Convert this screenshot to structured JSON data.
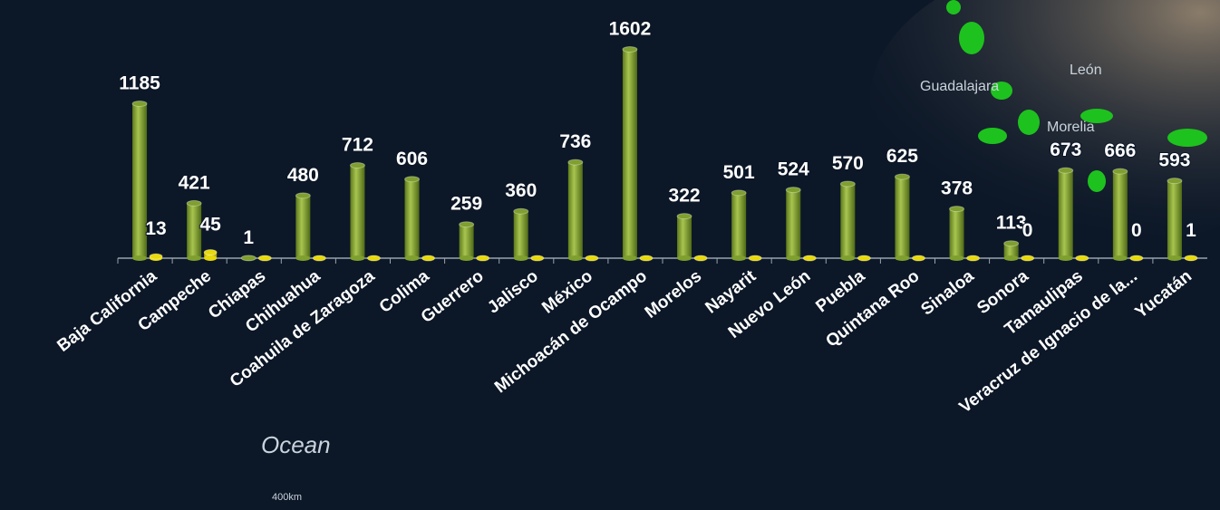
{
  "map_labels": [
    "Ocean",
    "400km",
    "Guadalajara",
    "León",
    "Morelia"
  ],
  "chart_data": {
    "type": "bar",
    "categories": [
      "Baja California",
      "Campeche",
      "Chiapas",
      "Chihuahua",
      "Coahuila de Zaragoza",
      "Colima",
      "Guerrero",
      "Jalisco",
      "México",
      "Michoacán de Ocampo",
      "Morelos",
      "Nayarit",
      "Nuevo León",
      "Puebla",
      "Quintana Roo",
      "Sinaloa",
      "Sonora",
      "Tamaulipas",
      "Veracruz de Ignacio de la...",
      "Yucatán"
    ],
    "ylim": [
      0,
      1800
    ],
    "series": [
      {
        "color": "#7f9f2f",
        "values": [
          1185,
          421,
          1,
          480,
          712,
          606,
          259,
          360,
          736,
          1602,
          322,
          501,
          524,
          570,
          625,
          378,
          113,
          673,
          666,
          593
        ]
      },
      {
        "color": "#e8d90c",
        "values": [
          13,
          45,
          0,
          0,
          0,
          0,
          0,
          0,
          0,
          0,
          0,
          0,
          0,
          0,
          0,
          0,
          0,
          0,
          0,
          1
        ],
        "value_labels": [
          "13",
          "45",
          null,
          null,
          null,
          null,
          null,
          null,
          null,
          null,
          null,
          null,
          null,
          null,
          null,
          null,
          "0",
          null,
          "0",
          "1"
        ]
      }
    ]
  }
}
